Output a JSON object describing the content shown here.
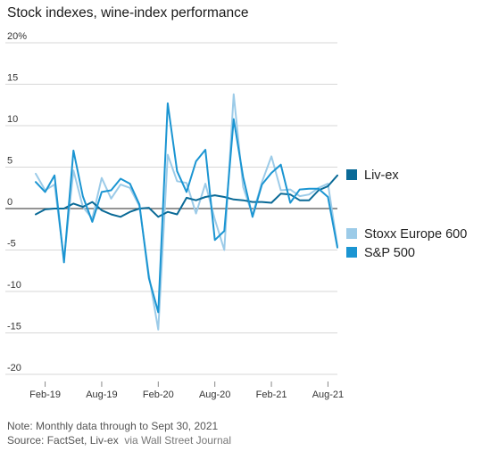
{
  "title": "Stock indexes, wine-index performance",
  "footer": {
    "note": "Note: Monthly data through to Sept 30, 2021",
    "source": "Source: FactSet, Liv-ex",
    "via": "via Wall Street Journal"
  },
  "colors": {
    "liv_ex": "#0a6a97",
    "stoxx": "#9ccbe8",
    "sp500": "#1b95d2",
    "grid": "#d7d7d7",
    "zero": "#555555"
  },
  "chart_data": {
    "type": "line",
    "title": "Stock indexes, wine-index performance",
    "xlabel": "",
    "ylabel": "",
    "ylim": [
      -20,
      20
    ],
    "yticks": [
      20,
      15,
      10,
      5,
      0,
      -5,
      -10,
      -15,
      -20
    ],
    "ytick_labels": [
      "20%",
      "15",
      "10",
      "5",
      "0",
      "-5",
      "-10",
      "-15",
      "-20"
    ],
    "xtick_labels": [
      "Feb-19",
      "Aug-19",
      "Feb-20",
      "Aug-20",
      "Feb-21",
      "Aug-21"
    ],
    "xtick_months": [
      "2019-02",
      "2019-08",
      "2020-02",
      "2020-08",
      "2021-02",
      "2021-08"
    ],
    "months": [
      "2019-01",
      "2019-02",
      "2019-03",
      "2019-04",
      "2019-05",
      "2019-06",
      "2019-07",
      "2019-08",
      "2019-09",
      "2019-10",
      "2019-11",
      "2019-12",
      "2020-01",
      "2020-02",
      "2020-03",
      "2020-04",
      "2020-05",
      "2020-06",
      "2020-07",
      "2020-08",
      "2020-09",
      "2020-10",
      "2020-11",
      "2020-12",
      "2021-01",
      "2021-02",
      "2021-03",
      "2021-04",
      "2021-05",
      "2021-06",
      "2021-07",
      "2021-08",
      "2021-09"
    ],
    "grid": true,
    "legend_placement": "right",
    "series": [
      {
        "name": "Liv-ex",
        "key": "liv_ex",
        "values": [
          -0.7,
          -0.1,
          0.0,
          0.0,
          0.6,
          0.2,
          0.8,
          -0.2,
          -0.7,
          -1.0,
          -0.4,
          0.0,
          0.1,
          -1.0,
          -0.4,
          -0.7,
          1.3,
          1.0,
          1.4,
          1.6,
          1.4,
          1.1,
          1.0,
          0.8,
          0.8,
          0.7,
          1.8,
          1.7,
          1.0,
          1.0,
          2.2,
          2.7,
          4.0
        ]
      },
      {
        "name": "Stoxx Europe 600",
        "key": "stoxx",
        "values": [
          4.2,
          2.2,
          2.9,
          -6.1,
          4.6,
          0.2,
          -1.2,
          3.7,
          1.2,
          2.9,
          2.5,
          0.3,
          -8.0,
          -14.6,
          6.5,
          3.3,
          3.1,
          -0.6,
          3.0,
          -1.3,
          -5.0,
          13.8,
          2.6,
          -0.8,
          3.2,
          6.3,
          2.2,
          2.3,
          1.5,
          1.7,
          2.5,
          3.0,
          -4.5
        ]
      },
      {
        "name": "S&P 500",
        "key": "sp500",
        "values": [
          3.2,
          2.0,
          4.0,
          -6.5,
          7.0,
          1.5,
          -1.6,
          2.0,
          2.2,
          3.6,
          3.0,
          0.5,
          -8.4,
          -12.5,
          12.7,
          4.5,
          2.0,
          5.7,
          7.1,
          -3.8,
          -2.7,
          10.8,
          3.8,
          -1.0,
          2.9,
          4.3,
          5.3,
          0.7,
          2.3,
          2.4,
          2.4,
          1.4,
          -4.7
        ]
      }
    ]
  }
}
